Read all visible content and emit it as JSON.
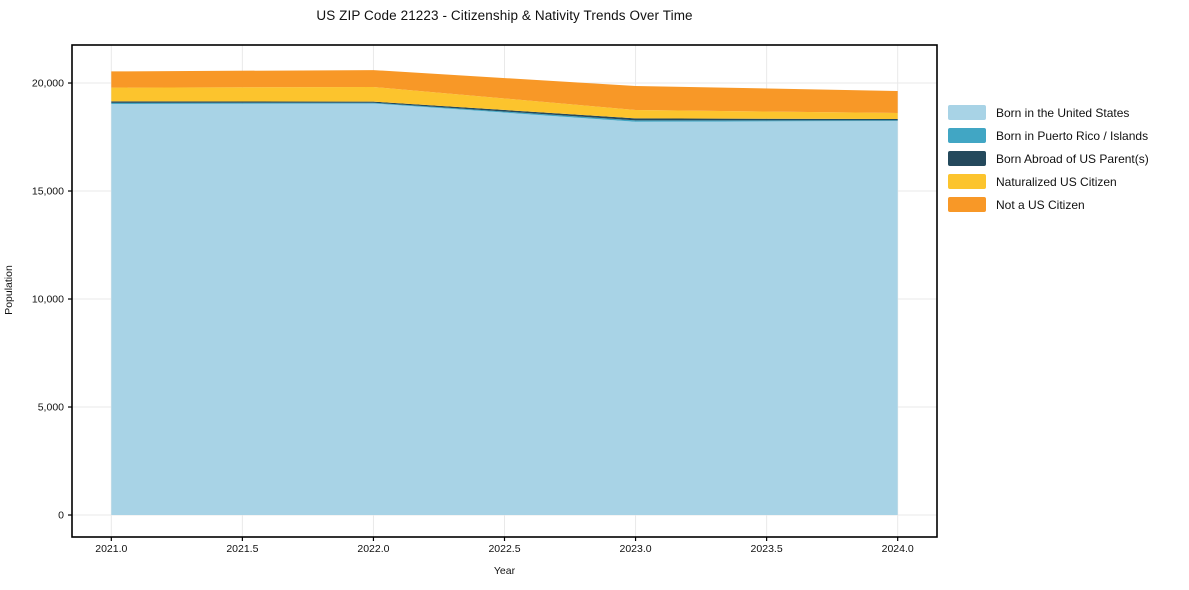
{
  "figure": {
    "background": "#ffffff",
    "spine_color": "#000000",
    "grid_color": "#e9e9e9",
    "tick_color": "#000000",
    "text_color": "#111111"
  },
  "chart_data": {
    "type": "area",
    "stacked": true,
    "title": "US ZIP Code 21223 - Citizenship & Nativity Trends Over Time",
    "xlabel": "Year",
    "ylabel": "Population",
    "x": [
      2021,
      2022,
      2023,
      2024
    ],
    "series": [
      {
        "name": "Born in the United States",
        "color": "#a8d3e6",
        "values": [
          19030,
          19050,
          18210,
          18240
        ]
      },
      {
        "name": "Born in Puerto Rico / Islands",
        "color": "#41a6c4",
        "values": [
          50,
          40,
          60,
          35
        ]
      },
      {
        "name": "Born Abroad of US Parent(s)",
        "color": "#24495c",
        "values": [
          70,
          50,
          90,
          60
        ]
      },
      {
        "name": "Naturalized US Citizen",
        "color": "#fcc42d",
        "values": [
          640,
          675,
          390,
          275
        ]
      },
      {
        "name": "Not a US Citizen",
        "color": "#f89827",
        "values": [
          750,
          785,
          1110,
          1020
        ]
      }
    ],
    "totals": [
      20540,
      20600,
      19860,
      19630
    ],
    "x_ticks": {
      "values": [
        2021.0,
        2021.5,
        2022.0,
        2022.5,
        2023.0,
        2023.5,
        2024.0
      ],
      "labels": [
        "2021.0",
        "2021.5",
        "2022.0",
        "2022.5",
        "2023.0",
        "2023.5",
        "2024.0"
      ]
    },
    "y_ticks": {
      "values": [
        0,
        5000,
        10000,
        15000,
        20000
      ],
      "labels": [
        "0",
        "5,000",
        "10,000",
        "15,000",
        "20,000"
      ]
    },
    "xlim": [
      2020.85,
      2024.15
    ],
    "ylim": [
      -1018,
      21760
    ],
    "grid": true,
    "legend_position": "outside-right"
  }
}
